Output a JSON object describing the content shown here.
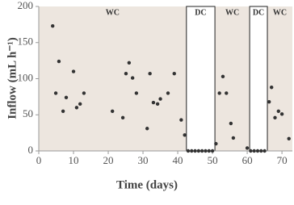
{
  "chart_data": {
    "type": "scatter",
    "x_label": "Time (days)",
    "y_label": "Inflow (mL h⁻¹)",
    "xlim": [
      0,
      73
    ],
    "ylim": [
      0,
      200
    ],
    "xticks": [
      0,
      10,
      20,
      30,
      40,
      50,
      60,
      70
    ],
    "yticks": [
      0,
      50,
      100,
      150,
      200
    ],
    "background": "#ede6df",
    "color": "#333333",
    "regions": [
      {
        "label": "WC",
        "start": 0,
        "end": 42.5,
        "color": "#ede6df"
      },
      {
        "label": "DC",
        "start": 42.5,
        "end": 50.7,
        "color": "#ffffff"
      },
      {
        "label": "WC",
        "start": 50.7,
        "end": 60.7,
        "color": "#ede6df"
      },
      {
        "label": "DC",
        "start": 60.7,
        "end": 65.8,
        "color": "#ffffff"
      },
      {
        "label": "WC",
        "start": 65.8,
        "end": 73,
        "color": "#ede6df"
      }
    ],
    "x": [
      4,
      4.9,
      5.8,
      7,
      7.9,
      10,
      10.9,
      11.9,
      13,
      21.2,
      24.2,
      25.1,
      26,
      27,
      28.1,
      31.2,
      32,
      33,
      34.2,
      35,
      37.2,
      39,
      41,
      42,
      43,
      44,
      45,
      46,
      47,
      48,
      49,
      50,
      51,
      52,
      53,
      54,
      55.3,
      56,
      60,
      61,
      62,
      63,
      64,
      65,
      66.3,
      67,
      68,
      69,
      70,
      72
    ],
    "values": [
      173,
      80,
      124,
      55,
      74,
      110,
      60,
      65,
      80,
      55,
      46,
      107,
      122,
      101,
      80,
      31,
      107,
      67,
      65,
      72,
      80,
      107,
      43,
      22,
      0,
      0,
      0,
      0,
      0,
      0,
      0,
      0,
      10,
      80,
      103,
      80,
      38,
      18,
      4,
      0,
      0,
      0,
      0,
      0,
      68,
      88,
      46,
      55,
      51,
      17
    ]
  }
}
